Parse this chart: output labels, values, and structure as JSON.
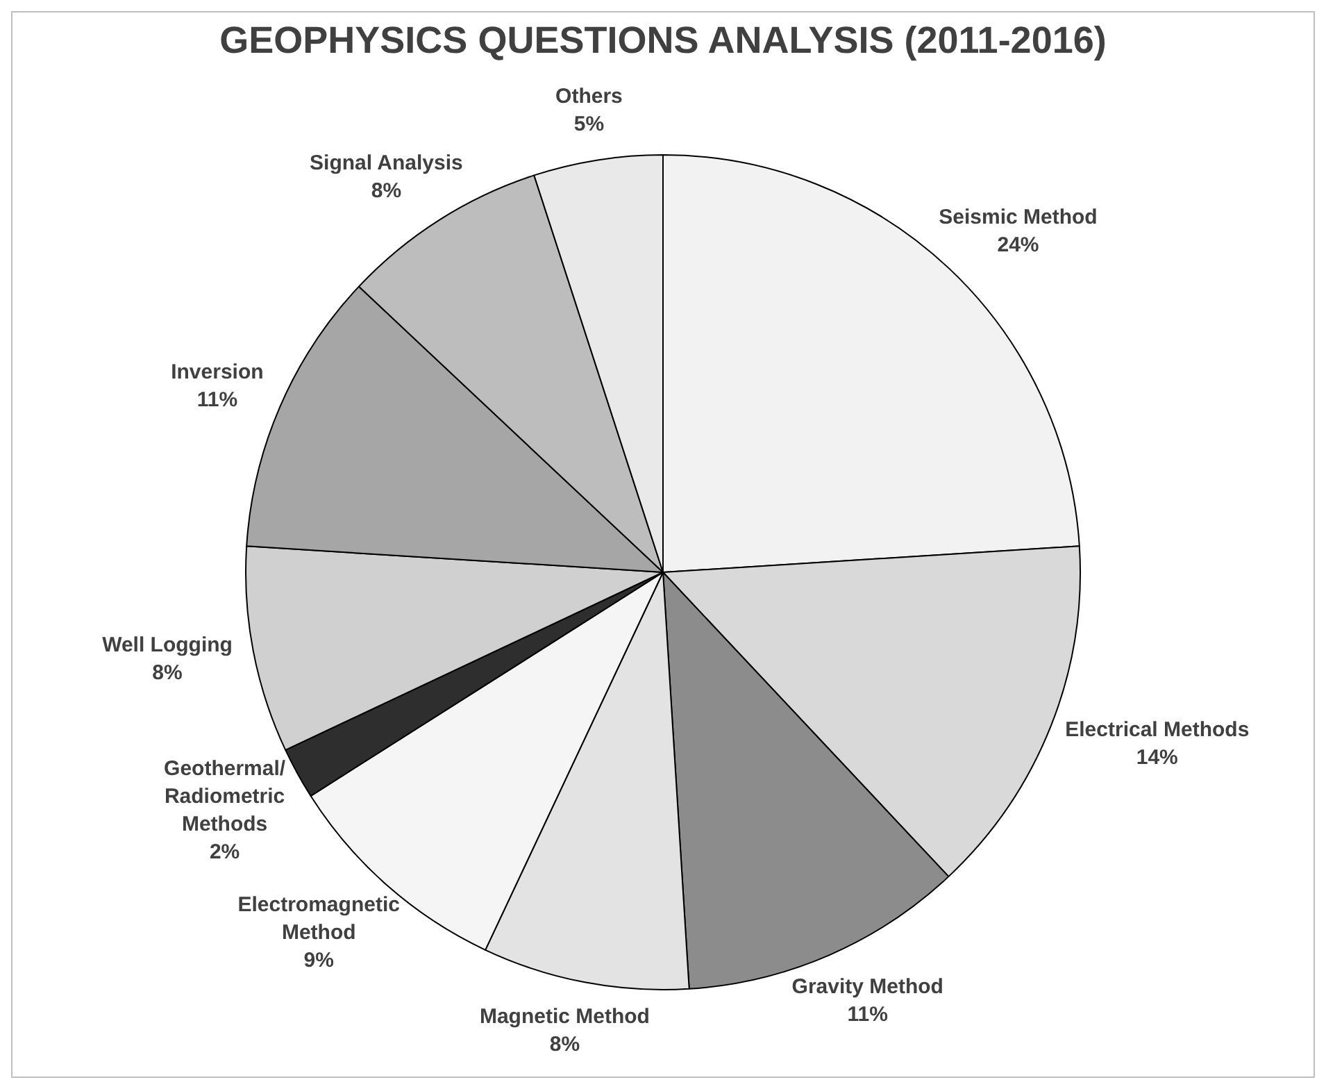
{
  "chart_data": {
    "type": "pie",
    "title": "GEOPHYSICS QUESTIONS ANALYSIS (2011-2016)",
    "categories": [
      "Seismic Method",
      "Electrical Methods",
      "Gravity Method",
      "Magnetic Method",
      "Electromagnetic\nMethod",
      "Geothermal/\nRadiometric\nMethods",
      "Well Logging",
      "Inversion",
      "Signal Analysis",
      "Others"
    ],
    "values": [
      24,
      14,
      11,
      8,
      9,
      2,
      8,
      11,
      8,
      5
    ],
    "value_labels": [
      "24%",
      "14%",
      "11%",
      "8%",
      "9%",
      "2%",
      "8%",
      "11%",
      "8%",
      "5%"
    ],
    "colors": [
      "#f2f2f2",
      "#d9d9d9",
      "#8c8c8c",
      "#e3e3e3",
      "#f5f5f5",
      "#2e2e2e",
      "#d0d0d0",
      "#a6a6a6",
      "#bdbdbd",
      "#e9e9e9"
    ],
    "legend": false
  }
}
